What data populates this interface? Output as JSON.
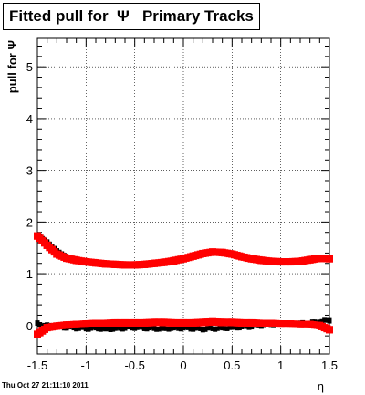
{
  "chart_data": {
    "type": "scatter",
    "title": "Fitted pull for  Ψ   Primary Tracks",
    "xlabel": "η",
    "ylabel": "pull for Ψ",
    "xlim": [
      -1.5,
      1.5
    ],
    "ylim": [
      -0.55,
      5.55
    ],
    "x_ticks": [
      -1.5,
      -1,
      -0.5,
      0,
      0.5,
      1,
      1.5
    ],
    "x_tick_labels": [
      "-1.5",
      "-1",
      "-0.5",
      "0",
      "0.5",
      "1",
      "1.5"
    ],
    "y_ticks": [
      0,
      1,
      2,
      3,
      4,
      5
    ],
    "y_tick_labels": [
      "0",
      "1",
      "2",
      "3",
      "4",
      "5"
    ],
    "grid": true,
    "series": [
      {
        "color": "#000000",
        "x": [
          -1.5,
          -1.4,
          -1.3,
          -1.2,
          -1.1,
          -1.0,
          -0.9,
          -0.8,
          -0.7,
          -0.6,
          -0.5,
          -0.4,
          -0.3,
          -0.2,
          -0.1,
          0.0,
          0.1,
          0.2,
          0.3,
          0.4,
          0.5,
          0.6,
          0.7,
          0.8,
          0.9,
          1.0,
          1.1,
          1.2,
          1.3,
          1.4,
          1.5
        ],
        "sigma": [
          1.75,
          1.62,
          1.45,
          1.33,
          1.28,
          1.25,
          1.22,
          1.2,
          1.18,
          1.17,
          1.17,
          1.18,
          1.2,
          1.22,
          1.26,
          1.3,
          1.36,
          1.41,
          1.44,
          1.43,
          1.39,
          1.34,
          1.3,
          1.26,
          1.24,
          1.23,
          1.22,
          1.24,
          1.28,
          1.3,
          1.3
        ],
        "mean": [
          0.04,
          0.0,
          -0.02,
          -0.04,
          -0.05,
          -0.06,
          -0.05,
          -0.07,
          -0.06,
          -0.05,
          -0.04,
          -0.05,
          -0.06,
          -0.06,
          -0.05,
          -0.05,
          -0.06,
          -0.07,
          -0.06,
          -0.05,
          -0.04,
          -0.03,
          -0.02,
          0.0,
          0.01,
          0.02,
          0.03,
          0.04,
          0.05,
          0.07,
          0.1
        ]
      },
      {
        "color": "#ff0000",
        "x": [
          -1.5,
          -1.4,
          -1.3,
          -1.2,
          -1.1,
          -1.0,
          -0.9,
          -0.8,
          -0.7,
          -0.6,
          -0.5,
          -0.4,
          -0.3,
          -0.2,
          -0.1,
          0.0,
          0.1,
          0.2,
          0.3,
          0.4,
          0.5,
          0.6,
          0.7,
          0.8,
          0.9,
          1.0,
          1.1,
          1.2,
          1.3,
          1.4,
          1.5
        ],
        "sigma": [
          1.73,
          1.55,
          1.38,
          1.3,
          1.26,
          1.23,
          1.21,
          1.19,
          1.18,
          1.17,
          1.17,
          1.18,
          1.2,
          1.22,
          1.25,
          1.29,
          1.34,
          1.39,
          1.42,
          1.41,
          1.38,
          1.33,
          1.29,
          1.26,
          1.24,
          1.23,
          1.23,
          1.24,
          1.27,
          1.3,
          1.29
        ],
        "mean": [
          -0.17,
          -0.04,
          -0.01,
          0.01,
          0.02,
          0.03,
          0.04,
          0.04,
          0.05,
          0.05,
          0.05,
          0.05,
          0.06,
          0.06,
          0.05,
          0.05,
          0.05,
          0.06,
          0.07,
          0.06,
          0.06,
          0.05,
          0.05,
          0.04,
          0.04,
          0.03,
          0.03,
          0.02,
          0.02,
          0.0,
          -0.08
        ]
      }
    ]
  },
  "footer_timestamp": "Thu Oct 27 21:11:10 2011"
}
